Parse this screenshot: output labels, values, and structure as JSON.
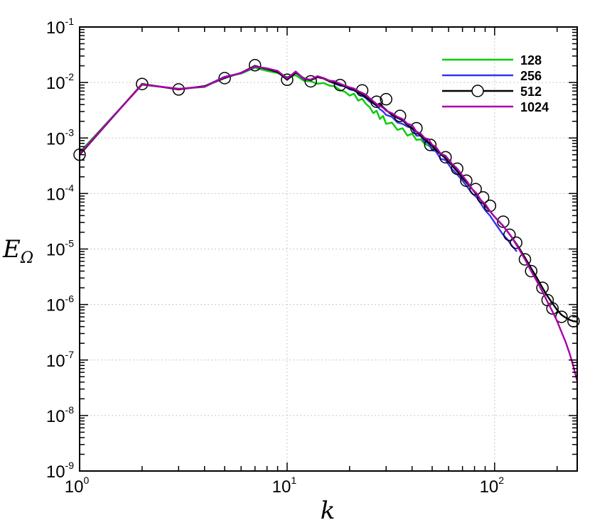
{
  "chart_data": {
    "type": "line",
    "xlabel": "k",
    "ylabel_main": "E",
    "ylabel_sub": "Ω",
    "xscale": "log",
    "yscale": "log",
    "xlim": [
      1,
      250
    ],
    "ylim": [
      1e-09,
      0.1
    ],
    "x_ticks": [
      {
        "value": 1,
        "base": "10",
        "exp": "0"
      },
      {
        "value": 10,
        "base": "10",
        "exp": "1"
      },
      {
        "value": 100,
        "base": "10",
        "exp": "2"
      }
    ],
    "y_ticks": [
      {
        "value": 0.1,
        "base": "10",
        "exp": "-1"
      },
      {
        "value": 0.01,
        "base": "10",
        "exp": "-2"
      },
      {
        "value": 0.001,
        "base": "10",
        "exp": "-3"
      },
      {
        "value": 0.0001,
        "base": "10",
        "exp": "-4"
      },
      {
        "value": 1e-05,
        "base": "10",
        "exp": "-5"
      },
      {
        "value": 1e-06,
        "base": "10",
        "exp": "-6"
      },
      {
        "value": 1e-07,
        "base": "10",
        "exp": "-7"
      },
      {
        "value": 1e-08,
        "base": "10",
        "exp": "-8"
      },
      {
        "value": 1e-09,
        "base": "10",
        "exp": "-9"
      }
    ],
    "grid": true,
    "legend_position": "top-right",
    "series": [
      {
        "name": "128",
        "color": "#00cc00",
        "marker": "none",
        "x": [
          1,
          2,
          3,
          4,
          5,
          6,
          7,
          8,
          9,
          10,
          11,
          12,
          13,
          14,
          15,
          16,
          17,
          18,
          19,
          20,
          21,
          22,
          23,
          24,
          25,
          26,
          27,
          28,
          29,
          30,
          32,
          34,
          36,
          38,
          40,
          42,
          44,
          46,
          48,
          50,
          52,
          55,
          58,
          62
        ],
        "y": [
          0.00055,
          0.0091,
          0.0077,
          0.0083,
          0.0125,
          0.0145,
          0.0185,
          0.0162,
          0.0148,
          0.0125,
          0.0135,
          0.0108,
          0.0105,
          0.0095,
          0.0098,
          0.0088,
          0.0085,
          0.0073,
          0.0068,
          0.0058,
          0.0063,
          0.0047,
          0.0051,
          0.0041,
          0.0036,
          0.0028,
          0.0031,
          0.0022,
          0.0025,
          0.0018,
          0.0019,
          0.0014,
          0.0015,
          0.0011,
          0.0012,
          0.00092,
          0.00095,
          0.00078,
          0.00073,
          0.00066,
          0.00058,
          0.00052,
          0.00043,
          0.00038
        ]
      },
      {
        "name": "256",
        "color": "#3333ee",
        "marker": "none",
        "x": [
          1,
          2,
          3,
          4,
          5,
          6,
          7,
          8,
          9,
          10,
          11,
          12,
          13,
          14,
          15,
          16,
          17,
          18,
          19,
          20,
          21,
          22,
          23,
          24,
          25,
          26,
          27,
          28,
          29,
          30,
          32,
          34,
          36,
          38,
          40,
          42,
          44,
          46,
          48,
          50,
          52,
          55,
          58,
          62,
          66,
          70,
          74,
          78,
          82,
          86,
          90,
          95,
          100,
          105,
          110,
          115,
          120,
          125,
          128
        ],
        "y": [
          0.00052,
          0.0093,
          0.0076,
          0.0085,
          0.0127,
          0.0147,
          0.0193,
          0.0175,
          0.0155,
          0.012,
          0.0155,
          0.0115,
          0.0112,
          0.0128,
          0.0118,
          0.0105,
          0.0095,
          0.0088,
          0.0085,
          0.0075,
          0.0072,
          0.0065,
          0.0058,
          0.0052,
          0.0045,
          0.0042,
          0.0038,
          0.0033,
          0.003,
          0.0026,
          0.0024,
          0.0019,
          0.0018,
          0.0016,
          0.0015,
          0.0011,
          0.0011,
          0.00085,
          0.0008,
          0.0006,
          0.00058,
          0.00042,
          0.0004,
          0.00028,
          0.00022,
          0.00017,
          0.00013,
          0.0001,
          8.5e-05,
          6.5e-05,
          5e-05,
          4e-05,
          3e-05,
          2.3e-05,
          1.8e-05,
          1.5e-05,
          1.2e-05,
          1e-05,
          9e-06
        ]
      },
      {
        "name": "512",
        "color": "#000000",
        "marker": "circle",
        "x": [
          1,
          2,
          3,
          4,
          5,
          6,
          7,
          8,
          9,
          10,
          11,
          12,
          13,
          14,
          15,
          16,
          17,
          18,
          19,
          20,
          21,
          22,
          23,
          24,
          25,
          26,
          27,
          28,
          29,
          30,
          32,
          34,
          36,
          38,
          40,
          42,
          44,
          46,
          48,
          50,
          52,
          55,
          58,
          62,
          66,
          70,
          74,
          78,
          82,
          86,
          90,
          95,
          100,
          110,
          120,
          130,
          140,
          150,
          160,
          170,
          180,
          190,
          200,
          210,
          220,
          230,
          240,
          250
        ],
        "y": [
          0.0005,
          0.0094,
          0.0075,
          0.0086,
          0.012,
          0.015,
          0.02,
          0.0175,
          0.0155,
          0.0112,
          0.015,
          0.012,
          0.011,
          0.0125,
          0.0118,
          0.0105,
          0.0098,
          0.009,
          0.0085,
          0.0078,
          0.0074,
          0.0066,
          0.0062,
          0.0054,
          0.0048,
          0.0043,
          0.0039,
          0.0042,
          0.0036,
          0.0032,
          0.0026,
          0.0023,
          0.0021,
          0.0017,
          0.0015,
          0.0013,
          0.0011,
          0.00095,
          0.00083,
          0.00072,
          0.00062,
          0.00051,
          0.00043,
          0.00033,
          0.00025,
          0.00019,
          0.00015,
          0.00012,
          9.5e-05,
          7.5e-05,
          6e-05,
          4.8e-05,
          3.8e-05,
          2.6e-05,
          1.7e-05,
          1.1e-05,
          7e-06,
          4.5e-06,
          3e-06,
          2e-06,
          1.4e-06,
          1.05e-06,
          8e-07,
          6.5e-07,
          5.8e-07,
          5.3e-07,
          5e-07,
          4.9e-07
        ],
        "marker_x": [
          1,
          2,
          3,
          5,
          7,
          10,
          13,
          18,
          23,
          27,
          30,
          35,
          42,
          49,
          58,
          66,
          73,
          81,
          88,
          95,
          110,
          118,
          127,
          140,
          150,
          170,
          180,
          190,
          210,
          240
        ],
        "marker_y": [
          0.0005,
          0.0094,
          0.0075,
          0.012,
          0.0205,
          0.0112,
          0.0105,
          0.009,
          0.0072,
          0.0045,
          0.005,
          0.0025,
          0.0015,
          0.00075,
          0.00045,
          0.00028,
          0.00017,
          0.00012,
          8.5e-05,
          6e-05,
          3.1e-05,
          1.8e-05,
          1.3e-05,
          6.5e-06,
          4e-06,
          2e-06,
          1.2e-06,
          8.5e-07,
          6e-07,
          5e-07
        ]
      },
      {
        "name": "1024",
        "color": "#aa00aa",
        "marker": "none",
        "x": [
          1,
          2,
          3,
          4,
          5,
          6,
          7,
          8,
          9,
          10,
          11,
          12,
          13,
          14,
          15,
          16,
          17,
          18,
          19,
          20,
          21,
          22,
          23,
          24,
          25,
          26,
          27,
          28,
          29,
          30,
          32,
          34,
          36,
          38,
          40,
          42,
          44,
          46,
          48,
          50,
          52,
          55,
          58,
          62,
          66,
          70,
          74,
          78,
          82,
          86,
          90,
          95,
          100,
          110,
          120,
          130,
          140,
          150,
          160,
          170,
          180,
          190,
          200,
          210,
          220,
          230,
          240,
          250
        ],
        "y": [
          0.00052,
          0.0092,
          0.0077,
          0.0084,
          0.0125,
          0.0148,
          0.0195,
          0.018,
          0.0162,
          0.0118,
          0.0158,
          0.0118,
          0.0113,
          0.013,
          0.012,
          0.0108,
          0.0105,
          0.0095,
          0.0088,
          0.0082,
          0.0078,
          0.007,
          0.0065,
          0.006,
          0.0052,
          0.0046,
          0.0041,
          0.0038,
          0.0035,
          0.0031,
          0.0028,
          0.0024,
          0.0022,
          0.0018,
          0.0017,
          0.0013,
          0.0012,
          0.001,
          0.00095,
          0.00075,
          0.0007,
          0.00052,
          0.00048,
          0.00035,
          0.00028,
          0.00021,
          0.00016,
          0.00012,
          0.0001,
          7.5e-05,
          6.5e-05,
          4.8e-05,
          3.8e-05,
          2.6e-05,
          1.7e-05,
          1.05e-05,
          6.5e-06,
          4e-06,
          2.6e-06,
          1.7e-06,
          1.1e-06,
          7.5e-07,
          5e-07,
          3.2e-07,
          2.1e-07,
          1.3e-07,
          7.5e-08,
          4.2e-08
        ]
      }
    ]
  }
}
